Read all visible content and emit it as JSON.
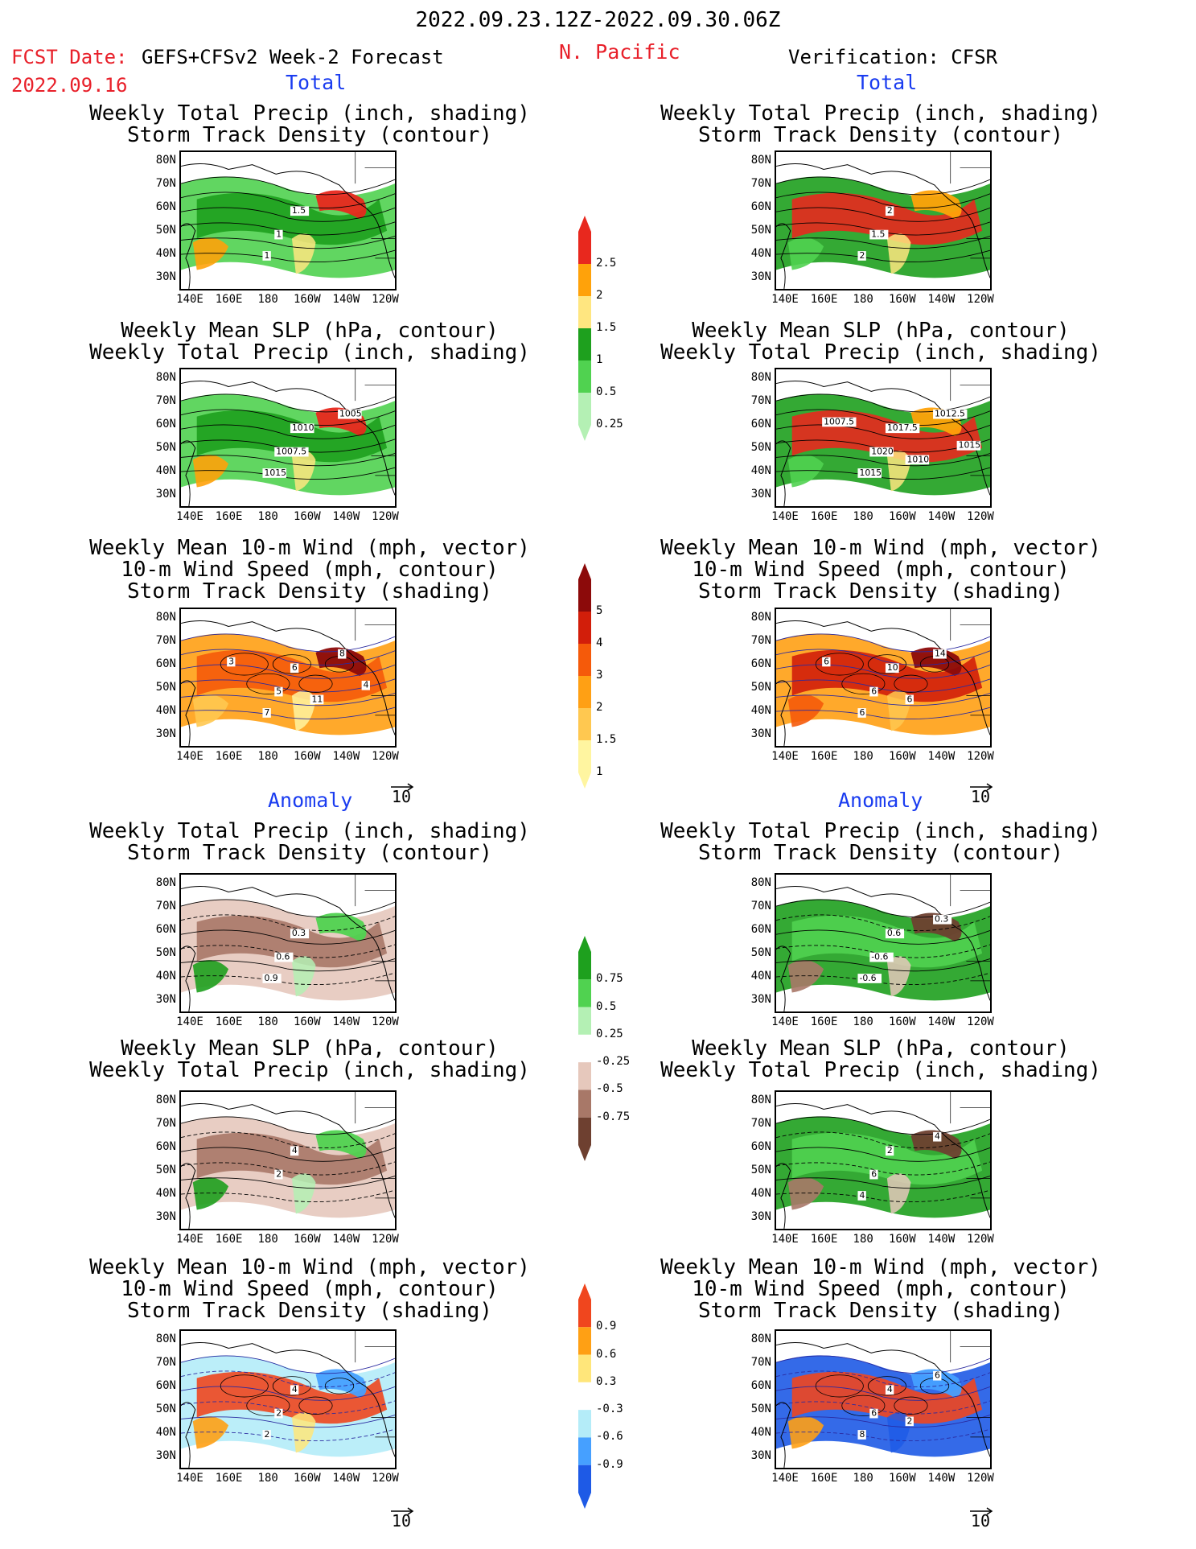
{
  "header": {
    "period": "2022.09.23.12Z-2022.09.30.06Z",
    "fcst_label": "FCST Date:",
    "fcst_date": "2022.09.16",
    "model": "GEFS+CFSv2 Week-2 Forecast",
    "region": "N. Pacific",
    "verification": "Verification: CFSR"
  },
  "sections": {
    "total": "Total",
    "anomaly": "Anomaly"
  },
  "panel_titles": {
    "precip_storm": [
      "Weekly Total Precip (inch, shading)",
      "Storm Track Density (contour)"
    ],
    "slp_precip": [
      "Weekly Mean SLP (hPa, contour)",
      "Weekly Total Precip (inch, shading)"
    ],
    "wind_storm": [
      "Weekly Mean 10-m Wind (mph, vector)",
      "10-m Wind Speed (mph, contour)",
      "Storm Track Density (shading)"
    ]
  },
  "axes": {
    "lat_ticks": [
      "80N",
      "70N",
      "60N",
      "50N",
      "40N",
      "30N"
    ],
    "lon_ticks": [
      "140E",
      "160E",
      "180",
      "160W",
      "140W",
      "120W"
    ]
  },
  "vector_ref": "10",
  "colorbars": {
    "precip_total": {
      "labels": [
        "2.5",
        "2",
        "1.5",
        "1",
        "0.5",
        "0.25"
      ],
      "colors": [
        "#e8281e",
        "#ffa20a",
        "#ffe680",
        "#1ea01e",
        "#50d250",
        "#b4f0b4"
      ]
    },
    "storm_total": {
      "labels": [
        "5",
        "4",
        "3",
        "2",
        "1.5",
        "1"
      ],
      "colors": [
        "#8c0a0a",
        "#d21e0a",
        "#f55a0a",
        "#ffa014",
        "#ffc850",
        "#fff5a0"
      ]
    },
    "precip_anom": {
      "labels": [
        "0.75",
        "0.5",
        "0.25",
        "-0.25",
        "-0.5",
        "-0.75"
      ],
      "colors": [
        "#1ea01e",
        "#50d250",
        "#b4f0b4",
        "#ffffff",
        "#e6c8bc",
        "#a87868",
        "#6e4030"
      ]
    },
    "storm_anom": {
      "labels": [
        "0.9",
        "0.6",
        "0.3",
        "-0.3",
        "-0.6",
        "-0.9"
      ],
      "colors": [
        "#f0461e",
        "#ffa014",
        "#ffe67a",
        "#ffffff",
        "#b4ecf8",
        "#46a0ff",
        "#1e5ae6"
      ]
    }
  },
  "contour_labels": {
    "fc_total_precip": [
      "1",
      "1.5",
      "1"
    ],
    "fc_total_slp": [
      "1007.5",
      "1010",
      "1015",
      "1005"
    ],
    "fc_total_wind": [
      "5",
      "6",
      "7",
      "8",
      "11",
      "3",
      "4"
    ],
    "ver_total_precip": [
      "1.5",
      "2",
      "2"
    ],
    "ver_total_slp": [
      "1020",
      "1017.5",
      "1015",
      "1012.5",
      "1010",
      "1007.5",
      "1015"
    ],
    "ver_total_wind": [
      "6",
      "10",
      "6",
      "14",
      "6",
      "6"
    ],
    "fc_anom_precip": [
      "0.6",
      "0.3",
      "0.9"
    ],
    "fc_anom_slp": [
      "2",
      "4"
    ],
    "fc_anom_wind": [
      "2",
      "4",
      "2"
    ],
    "ver_anom_precip": [
      "-0.6",
      "0.6",
      "-0.6",
      "0.3"
    ],
    "ver_anom_slp": [
      "6",
      "2",
      "4",
      "4"
    ],
    "ver_anom_wind": [
      "6",
      "4",
      "8",
      "6",
      "2"
    ]
  }
}
